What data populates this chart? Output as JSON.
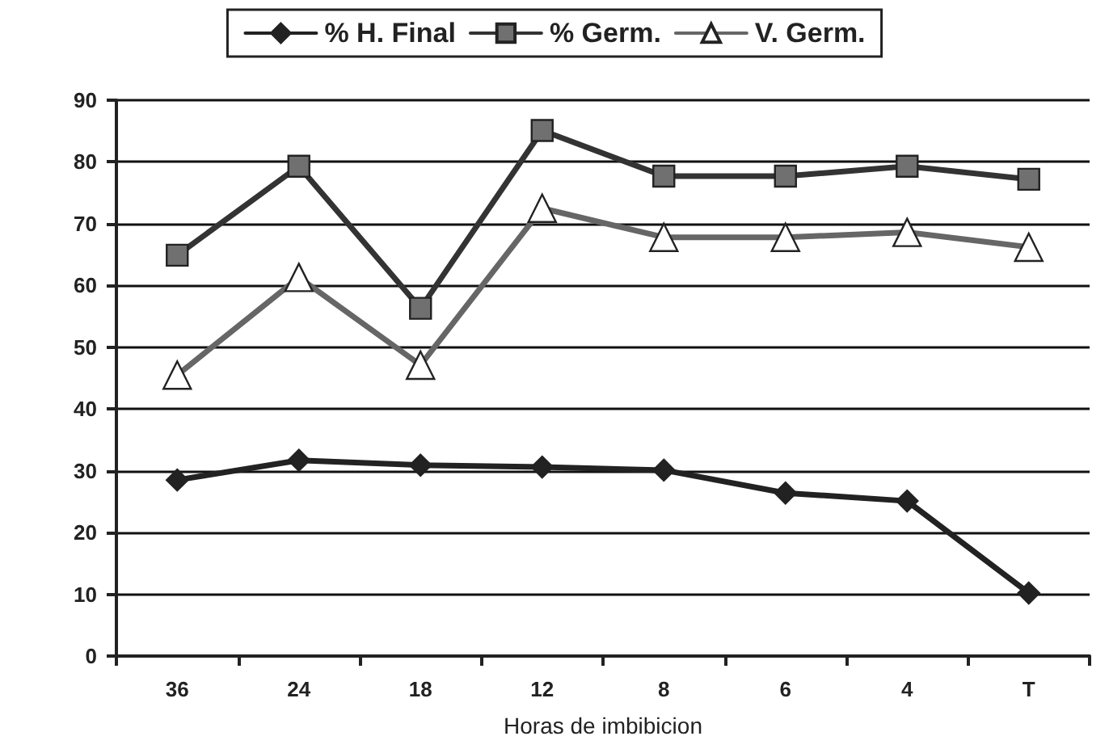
{
  "chart_data": {
    "type": "line",
    "xlabel": "Horas de imbibicion",
    "categories": [
      "36",
      "24",
      "18",
      "12",
      "8",
      "6",
      "4",
      "T"
    ],
    "series": [
      {
        "name": "% H. Final",
        "color": "#222222",
        "marker": "diamond",
        "values": [
          28.5,
          31.7,
          30.9,
          30.6,
          30.1,
          26.4,
          25.1,
          10.2
        ]
      },
      {
        "name": "% Germ.",
        "color": "#333333",
        "marker": "square",
        "values": [
          64.9,
          79.3,
          56.3,
          85.1,
          77.7,
          77.7,
          79.3,
          77.2
        ]
      },
      {
        "name": "V. Germ.",
        "color": "#666666",
        "marker": "triangle",
        "values": [
          45.5,
          61.3,
          47.1,
          72.5,
          67.8,
          67.8,
          68.6,
          66.2
        ]
      }
    ],
    "ylim": [
      0,
      90
    ],
    "yticks": [
      0,
      10,
      20,
      30,
      40,
      50,
      60,
      70,
      80,
      90
    ],
    "grid": "y",
    "legend": "top",
    "line_style": "solid"
  }
}
